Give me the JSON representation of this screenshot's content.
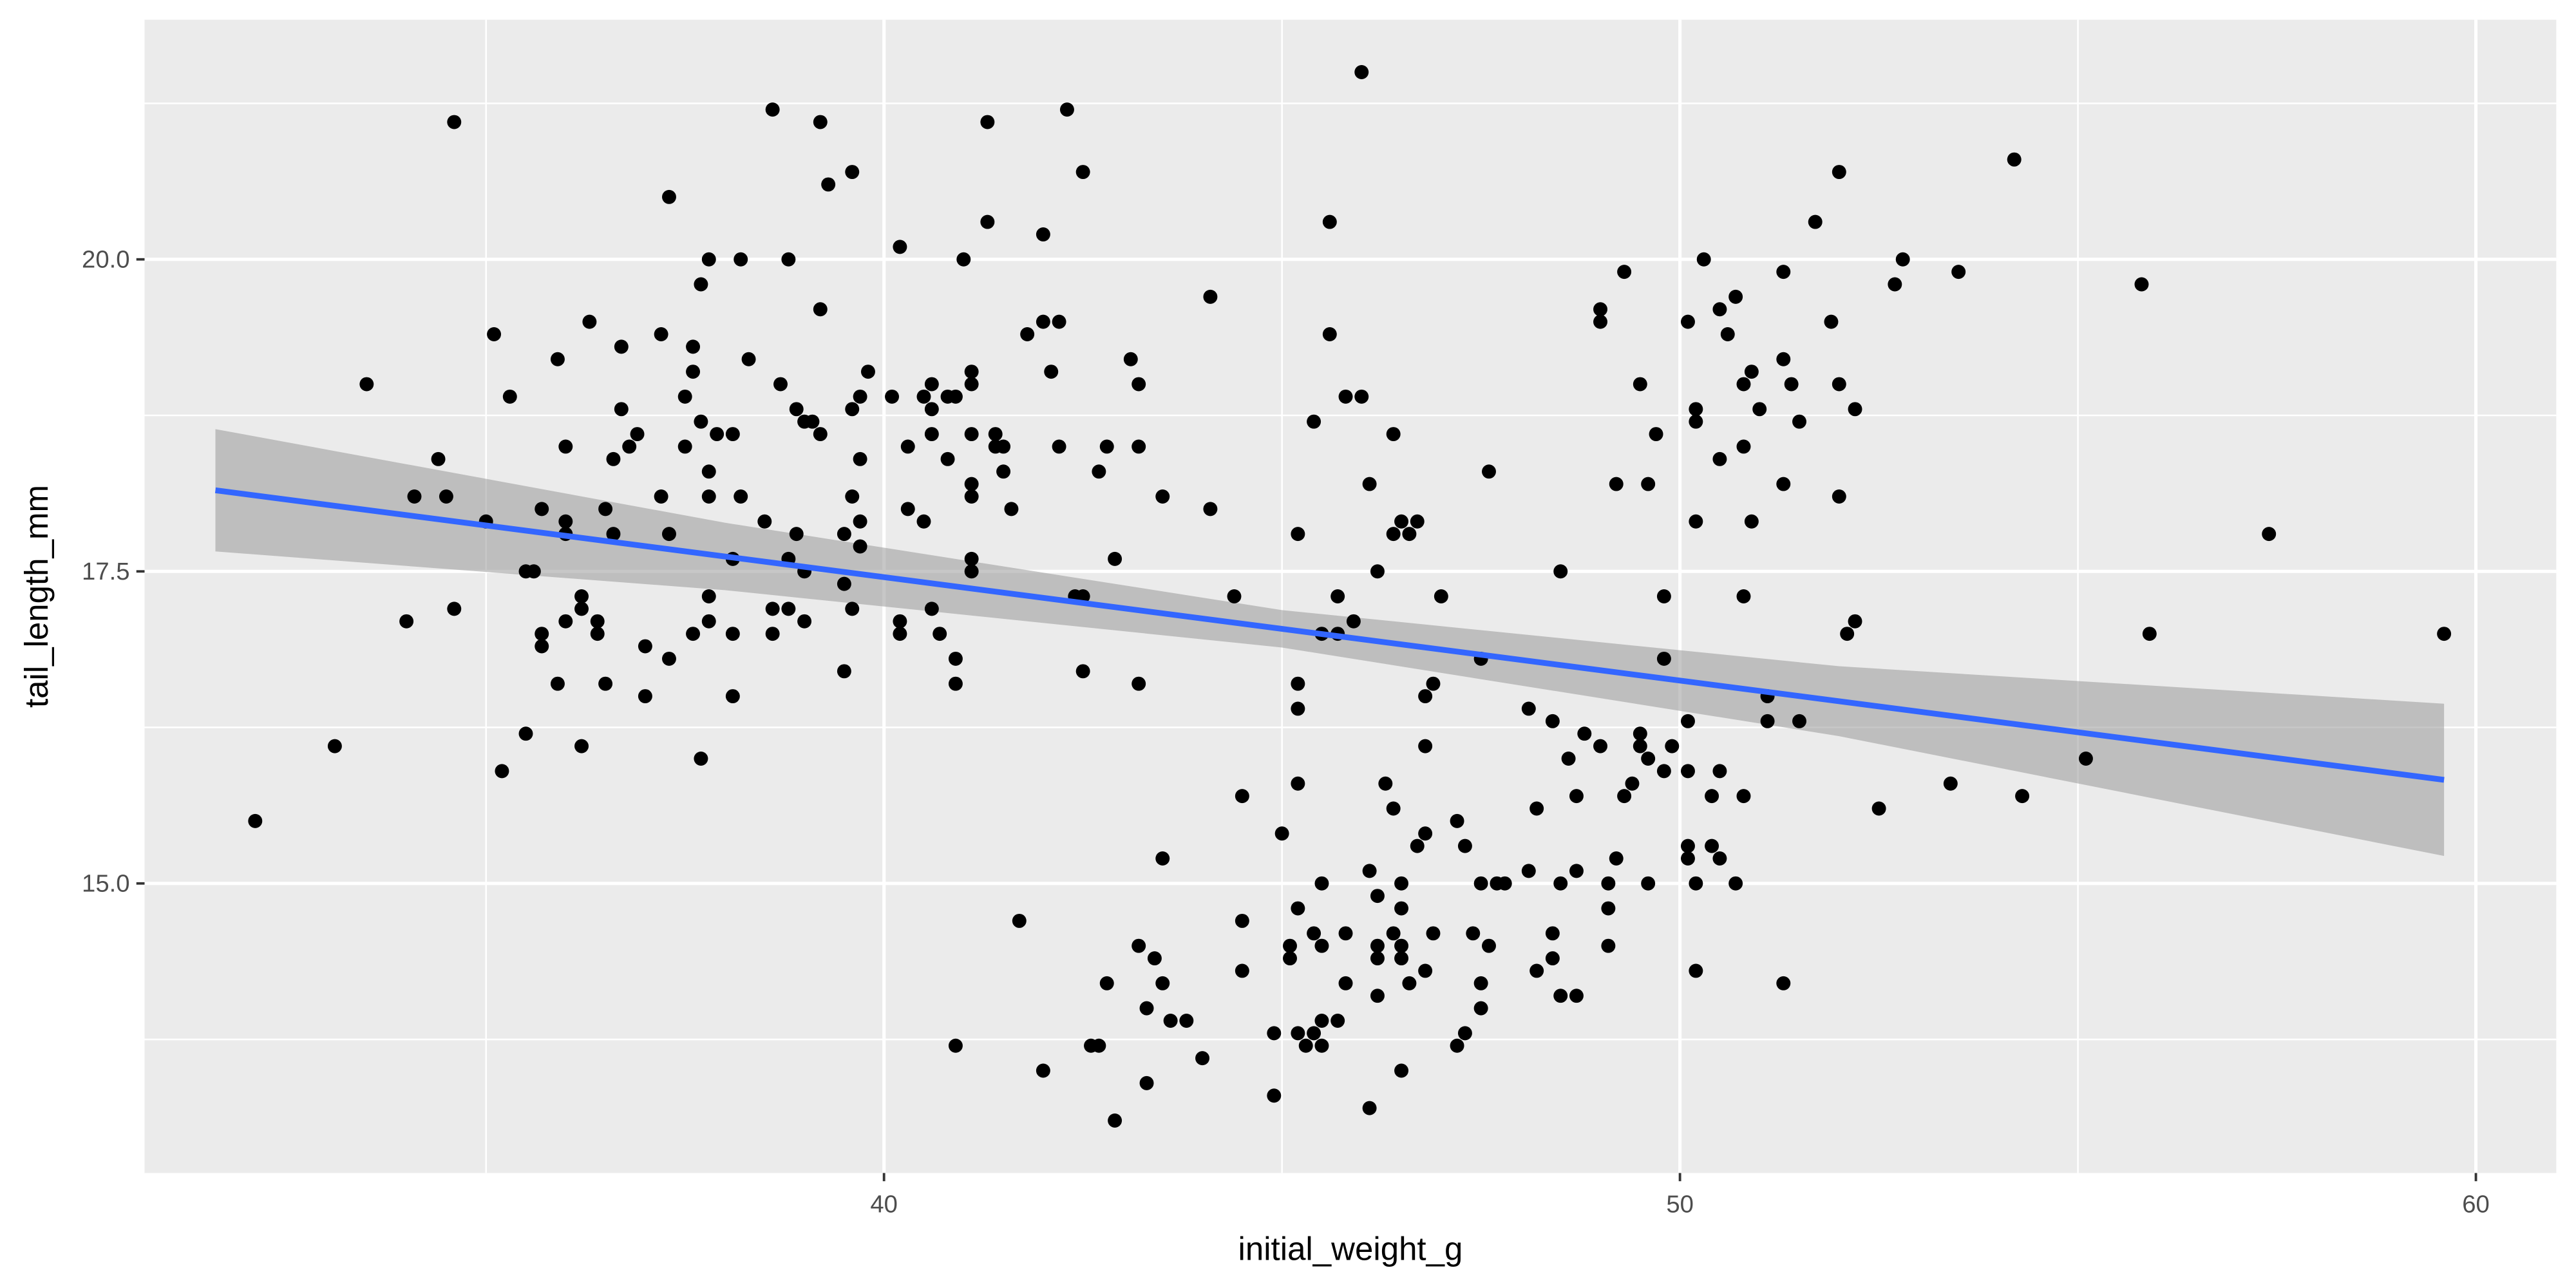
{
  "chart_data": {
    "type": "scatter",
    "x_label": "initial_weight_g",
    "y_label": "tail_length_mm",
    "color": "#000000",
    "xlim": [
      30.71,
      61.01
    ],
    "ylim": [
      12.68,
      21.92
    ],
    "xticks": [
      40,
      50,
      60
    ],
    "yticks": [
      {
        "value": 15,
        "label": "15.0"
      },
      {
        "value": 17.5,
        "label": "17.5"
      },
      {
        "value": 20,
        "label": "20.0"
      }
    ],
    "x_minor_ticks": [
      35,
      45,
      55
    ],
    "y_minor_ticks": [
      13.75,
      16.25,
      18.75,
      21.25
    ],
    "grid": true,
    "fit": {
      "color": "#3366ff",
      "x": [
        31.6,
        59.6
      ],
      "y": [
        18.15,
        15.83
      ]
    },
    "band": {
      "color": "#999999",
      "x": [
        31.6,
        38,
        45,
        52,
        59.6
      ],
      "lower": [
        17.66,
        17.35,
        16.89,
        16.18,
        15.22
      ],
      "upper": [
        18.64,
        17.89,
        17.19,
        16.74,
        16.44
      ]
    },
    "x": [
      32.1,
      33.1,
      33.5,
      34.0,
      34.1,
      34.4,
      34.5,
      34.6,
      34.6,
      35.0,
      35.1,
      35.2,
      35.3,
      35.5,
      35.5,
      35.6,
      35.7,
      35.7,
      35.7,
      35.9,
      35.9,
      36.0,
      36.0,
      36.0,
      36.0,
      36.2,
      36.2,
      36.2,
      36.3,
      36.4,
      36.4,
      36.5,
      36.5,
      36.6,
      36.6,
      36.7,
      36.7,
      36.8,
      36.9,
      37.0,
      37.0,
      37.2,
      37.2,
      37.3,
      37.3,
      37.3,
      37.5,
      37.5,
      37.6,
      37.6,
      37.6,
      37.7,
      37.7,
      37.7,
      37.8,
      37.8,
      37.8,
      37.8,
      37.8,
      37.9,
      38.1,
      38.1,
      38.1,
      38.1,
      38.2,
      38.2,
      38.3,
      38.5,
      38.6,
      38.6,
      38.6,
      38.7,
      38.8,
      38.8,
      38.8,
      38.9,
      38.9,
      39.0,
      39.0,
      39.0,
      39.1,
      39.2,
      39.2,
      39.2,
      39.3,
      39.5,
      39.5,
      39.5,
      39.6,
      39.6,
      39.6,
      39.6,
      39.7,
      39.7,
      39.7,
      39.7,
      39.8,
      40.1,
      40.2,
      40.2,
      40.2,
      40.3,
      40.3,
      40.5,
      40.5,
      40.6,
      40.6,
      40.6,
      40.6,
      40.7,
      40.8,
      40.8,
      40.9,
      40.9,
      40.9,
      40.9,
      41.0,
      41.1,
      41.1,
      41.1,
      41.1,
      41.1,
      41.1,
      41.1,
      41.3,
      41.3,
      41.4,
      41.4,
      41.5,
      41.5,
      41.6,
      41.7,
      41.8,
      42.0,
      42.0,
      42.0,
      42.1,
      42.2,
      42.2,
      42.3,
      42.4,
      42.5,
      42.5,
      42.5,
      42.6,
      42.7,
      42.7,
      42.8,
      42.8,
      42.9,
      42.9,
      43.1,
      43.2,
      43.2,
      43.2,
      43.2,
      43.3,
      43.3,
      43.4,
      43.5,
      43.5,
      43.5,
      43.6,
      43.8,
      44.0,
      44.1,
      44.1,
      44.4,
      44.5,
      44.5,
      44.5,
      44.9,
      44.9,
      45.0,
      45.1,
      45.1,
      45.2,
      45.2,
      45.2,
      45.2,
      45.2,
      45.2,
      45.3,
      45.4,
      45.4,
      45.4,
      45.5,
      45.5,
      45.5,
      45.5,
      45.5,
      45.6,
      45.6,
      45.7,
      45.7,
      45.7,
      45.8,
      46.0,
      45.8,
      45.8,
      45.9,
      46.0,
      46.1,
      46.1,
      46.1,
      46.2,
      46.2,
      46.2,
      46.2,
      46.2,
      46.3,
      46.4,
      46.4,
      46.4,
      46.4,
      46.5,
      46.6,
      46.7,
      46.5,
      46.5,
      46.5,
      46.5,
      46.5,
      46.6,
      46.7,
      46.8,
      46.8,
      46.8,
      46.8,
      46.9,
      46.9,
      47.0,
      47.2,
      47.2,
      47.3,
      47.3,
      47.4,
      47.5,
      47.5,
      47.5,
      47.5,
      47.6,
      47.6,
      47.7,
      47.8,
      48.1,
      48.1,
      48.2,
      48.2,
      48.4,
      48.4,
      48.4,
      48.5,
      48.5,
      48.5,
      48.7,
      48.6,
      48.7,
      48.7,
      48.8,
      49.0,
      49.0,
      49.0,
      49.1,
      49.1,
      49.1,
      49.2,
      49.2,
      49.3,
      49.3,
      49.4,
      49.5,
      49.5,
      49.5,
      49.6,
      49.6,
      49.6,
      49.7,
      49.8,
      49.8,
      49.8,
      49.9,
      50.1,
      50.1,
      50.1,
      50.1,
      50.1,
      50.2,
      50.2,
      50.2,
      50.2,
      50.2,
      50.3,
      50.4,
      50.4,
      50.5,
      50.5,
      50.5,
      50.5,
      50.6,
      50.7,
      50.7,
      50.8,
      50.8,
      50.8,
      50.8,
      50.9,
      50.9,
      51.0,
      51.1,
      51.1,
      51.3,
      51.3,
      51.3,
      51.3,
      51.4,
      51.5,
      51.5,
      51.7,
      51.9,
      52.0,
      52.0,
      52.0,
      52.1,
      52.2,
      52.2,
      52.5,
      52.7,
      52.8,
      53.4,
      53.5,
      54.2,
      54.3,
      55.1,
      55.8,
      55.9,
      57.4,
      59.6
    ],
    "values": [
      15.5,
      16.1,
      19.0,
      17.1,
      18.1,
      18.4,
      18.1,
      21.1,
      17.2,
      17.9,
      19.4,
      15.9,
      18.9,
      16.2,
      17.5,
      17.5,
      18.0,
      17.0,
      16.9,
      19.2,
      16.6,
      18.5,
      17.9,
      17.8,
      17.1,
      16.1,
      17.3,
      17.2,
      19.5,
      17.1,
      17.0,
      18.0,
      16.6,
      18.4,
      17.8,
      19.3,
      18.8,
      18.5,
      18.6,
      16.5,
      16.9,
      19.4,
      18.1,
      20.5,
      17.8,
      16.8,
      18.9,
      18.5,
      19.3,
      19.1,
      17.0,
      19.8,
      16.0,
      18.7,
      20.0,
      18.3,
      18.1,
      17.3,
      17.1,
      18.6,
      18.6,
      17.6,
      17.0,
      16.5,
      20.0,
      18.1,
      19.2,
      17.9,
      21.2,
      17.2,
      17.0,
      19.0,
      20.0,
      17.6,
      17.2,
      17.8,
      18.8,
      18.7,
      17.5,
      17.1,
      18.7,
      21.1,
      19.6,
      18.6,
      20.6,
      17.4,
      16.7,
      17.8,
      20.7,
      18.8,
      18.1,
      17.2,
      17.7,
      17.9,
      18.9,
      18.4,
      19.1,
      18.9,
      20.1,
      17.1,
      17.0,
      18.5,
      18.0,
      17.9,
      18.9,
      19.0,
      18.8,
      18.6,
      17.2,
      17.0,
      18.4,
      18.9,
      18.9,
      16.8,
      16.6,
      13.7,
      20.0,
      19.1,
      19.0,
      18.6,
      18.2,
      18.1,
      17.6,
      17.5,
      21.1,
      20.3,
      18.6,
      18.5,
      18.5,
      18.3,
      18.0,
      14.7,
      19.4,
      20.2,
      19.5,
      13.5,
      19.1,
      19.5,
      18.5,
      21.2,
      17.3,
      17.3,
      20.7,
      16.7,
      13.7,
      13.7,
      18.3,
      18.5,
      14.2,
      17.6,
      13.1,
      19.2,
      19.0,
      18.5,
      16.6,
      14.5,
      13.4,
      14.0,
      14.4,
      18.1,
      15.2,
      14.2,
      13.9,
      13.9,
      13.6,
      19.7,
      18.0,
      17.3,
      15.7,
      14.7,
      14.3,
      13.8,
      13.3,
      15.4,
      14.5,
      14.4,
      17.8,
      16.6,
      16.4,
      15.8,
      14.8,
      13.8,
      13.7,
      13.8,
      18.7,
      14.6,
      15.0,
      14.5,
      13.9,
      13.7,
      17.0,
      20.3,
      19.4,
      17.0,
      17.3,
      13.9,
      18.9,
      18.9,
      14.6,
      14.2,
      17.1,
      21.5,
      18.2,
      15.1,
      13.2,
      17.5,
      14.9,
      14.5,
      14.4,
      14.1,
      15.8,
      18.6,
      17.8,
      15.6,
      14.6,
      17.9,
      17.8,
      17.9,
      15.0,
      14.8,
      14.5,
      14.4,
      13.5,
      14.2,
      15.3,
      16.5,
      16.1,
      15.4,
      14.3,
      16.6,
      14.6,
      17.3,
      15.5,
      13.7,
      13.8,
      15.3,
      14.6,
      16.8,
      15.0,
      14.2,
      14.0,
      18.3,
      14.5,
      15.0,
      15.0,
      16.4,
      15.1,
      15.6,
      14.3,
      16.3,
      14.6,
      14.4,
      17.5,
      15.0,
      14.1,
      14.1,
      16.0,
      15.7,
      15.1,
      16.2,
      19.6,
      19.5,
      16.1,
      15.0,
      14.8,
      14.5,
      18.2,
      15.2,
      19.9,
      15.7,
      15.8,
      19.0,
      16.2,
      16.1,
      16.0,
      18.2,
      15.0,
      18.6,
      17.3,
      16.8,
      15.9,
      16.1,
      19.5,
      16.3,
      15.9,
      15.3,
      15.2,
      17.9,
      15.0,
      18.8,
      18.7,
      14.3,
      20.0,
      15.7,
      15.3,
      19.6,
      18.4,
      15.9,
      15.2,
      19.4,
      19.7,
      15.0,
      19.0,
      18.5,
      17.3,
      15.7,
      19.1,
      17.9,
      18.8,
      16.5,
      16.3,
      19.9,
      19.2,
      18.2,
      14.2,
      19.0,
      18.7,
      16.3,
      20.3,
      19.5,
      20.7,
      19.0,
      18.1,
      17.0,
      17.1,
      18.8,
      15.6,
      19.8,
      20.0,
      15.8,
      19.9,
      20.8,
      15.7,
      16.0,
      19.8,
      17.0,
      17.8,
      17.0
    ]
  }
}
